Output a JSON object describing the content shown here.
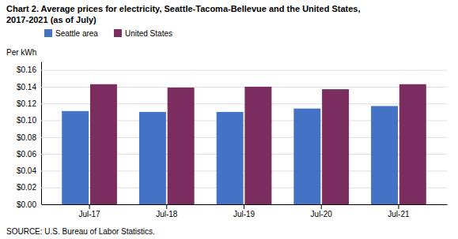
{
  "chart_data": {
    "type": "bar",
    "title": "Chart 2. Average prices for electricity, Seattle-Tacoma-Bellevue and the United States,",
    "subtitle": "2017-2021  (as of July)",
    "ylabel": "Per kWh",
    "annotations": [
      "SOURCE: U.S. Bureau of Labor Statistics."
    ],
    "categories": [
      "Jul-17",
      "Jul-18",
      "Jul-19",
      "Jul-20",
      "Jul-21"
    ],
    "series": [
      {
        "name": "Seattle area",
        "color": "#4472C4",
        "values": [
          0.111,
          0.11,
          0.11,
          0.114,
          0.117
        ]
      },
      {
        "name": "United States",
        "color": "#7B2D60",
        "values": [
          0.143,
          0.139,
          0.14,
          0.137,
          0.143
        ]
      }
    ],
    "ylim": [
      0.0,
      0.17
    ],
    "yticks": [
      {
        "value": 0.0,
        "label": "$0.00"
      },
      {
        "value": 0.02,
        "label": "$0.02"
      },
      {
        "value": 0.04,
        "label": "$0.04"
      },
      {
        "value": 0.06,
        "label": "$0.06"
      },
      {
        "value": 0.08,
        "label": "$0.08"
      },
      {
        "value": 0.1,
        "label": "$0.10"
      },
      {
        "value": 0.12,
        "label": "$0.12"
      },
      {
        "value": 0.14,
        "label": "$0.14"
      },
      {
        "value": 0.16,
        "label": "$0.16"
      }
    ],
    "grid": true,
    "legend": "upper left"
  }
}
